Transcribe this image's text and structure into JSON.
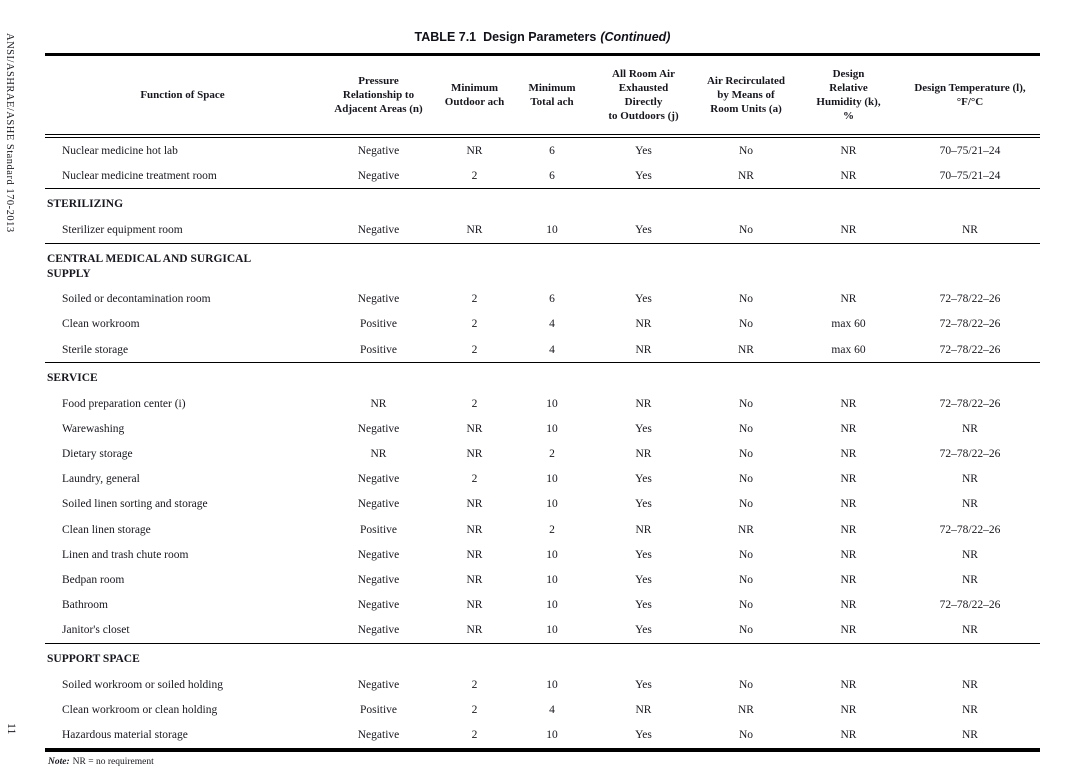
{
  "page": {
    "standard_label": "ANSI/ASHRAE/ASHE Standard 170-2013",
    "page_number": "11"
  },
  "table": {
    "title": "TABLE 7.1  Design Parameters",
    "title_continued": "(Continued)",
    "columns": [
      "Function of Space",
      "Pressure\nRelationship to\nAdjacent Areas (n)",
      "Minimum\nOutdoor ach",
      "Minimum\nTotal ach",
      "All Room Air\nExhausted\nDirectly\nto Outdoors (j)",
      "Air Recirculated\nby Means of\nRoom Units (a)",
      "Design\nRelative\nHumidity (k),\n%",
      "Design Temperature (l),\n°F/°C"
    ],
    "sections": [
      {
        "name": "",
        "rows": [
          [
            "Nuclear medicine hot lab",
            "Negative",
            "NR",
            "6",
            "Yes",
            "No",
            "NR",
            "70–75/21–24"
          ],
          [
            "Nuclear medicine treatment room",
            "Negative",
            "2",
            "6",
            "Yes",
            "NR",
            "NR",
            "70–75/21–24"
          ]
        ]
      },
      {
        "name": "STERILIZING",
        "rows": [
          [
            "Sterilizer equipment room",
            "Negative",
            "NR",
            "10",
            "Yes",
            "No",
            "NR",
            "NR"
          ]
        ]
      },
      {
        "name": "CENTRAL MEDICAL AND SURGICAL SUPPLY",
        "rows": [
          [
            "Soiled or decontamination room",
            "Negative",
            "2",
            "6",
            "Yes",
            "No",
            "NR",
            "72–78/22–26"
          ],
          [
            "Clean workroom",
            "Positive",
            "2",
            "4",
            "NR",
            "No",
            "max 60",
            "72–78/22–26"
          ],
          [
            "Sterile storage",
            "Positive",
            "2",
            "4",
            "NR",
            "NR",
            "max 60",
            "72–78/22–26"
          ]
        ]
      },
      {
        "name": "SERVICE",
        "rows": [
          [
            "Food preparation center (i)",
            "NR",
            "2",
            "10",
            "NR",
            "No",
            "NR",
            "72–78/22–26"
          ],
          [
            "Warewashing",
            "Negative",
            "NR",
            "10",
            "Yes",
            "No",
            "NR",
            "NR"
          ],
          [
            "Dietary storage",
            "NR",
            "NR",
            "2",
            "NR",
            "No",
            "NR",
            "72–78/22–26"
          ],
          [
            "Laundry, general",
            "Negative",
            "2",
            "10",
            "Yes",
            "No",
            "NR",
            "NR"
          ],
          [
            "Soiled linen sorting and storage",
            "Negative",
            "NR",
            "10",
            "Yes",
            "No",
            "NR",
            "NR"
          ],
          [
            "Clean linen storage",
            "Positive",
            "NR",
            "2",
            "NR",
            "NR",
            "NR",
            "72–78/22–26"
          ],
          [
            "Linen and trash chute room",
            "Negative",
            "NR",
            "10",
            "Yes",
            "No",
            "NR",
            "NR"
          ],
          [
            "Bedpan room",
            "Negative",
            "NR",
            "10",
            "Yes",
            "No",
            "NR",
            "NR"
          ],
          [
            "Bathroom",
            "Negative",
            "NR",
            "10",
            "Yes",
            "No",
            "NR",
            "72–78/22–26"
          ],
          [
            "Janitor's closet",
            "Negative",
            "NR",
            "10",
            "Yes",
            "No",
            "NR",
            "NR"
          ]
        ]
      },
      {
        "name": "SUPPORT SPACE",
        "rows": [
          [
            "Soiled workroom or soiled holding",
            "Negative",
            "2",
            "10",
            "Yes",
            "No",
            "NR",
            "NR"
          ],
          [
            "Clean workroom or clean holding",
            "Positive",
            "2",
            "4",
            "NR",
            "NR",
            "NR",
            "NR"
          ],
          [
            "Hazardous material storage",
            "Negative",
            "2",
            "10",
            "Yes",
            "No",
            "NR",
            "NR"
          ]
        ]
      }
    ],
    "note_label": "Note:",
    "note_text": "NR = no requirement"
  }
}
